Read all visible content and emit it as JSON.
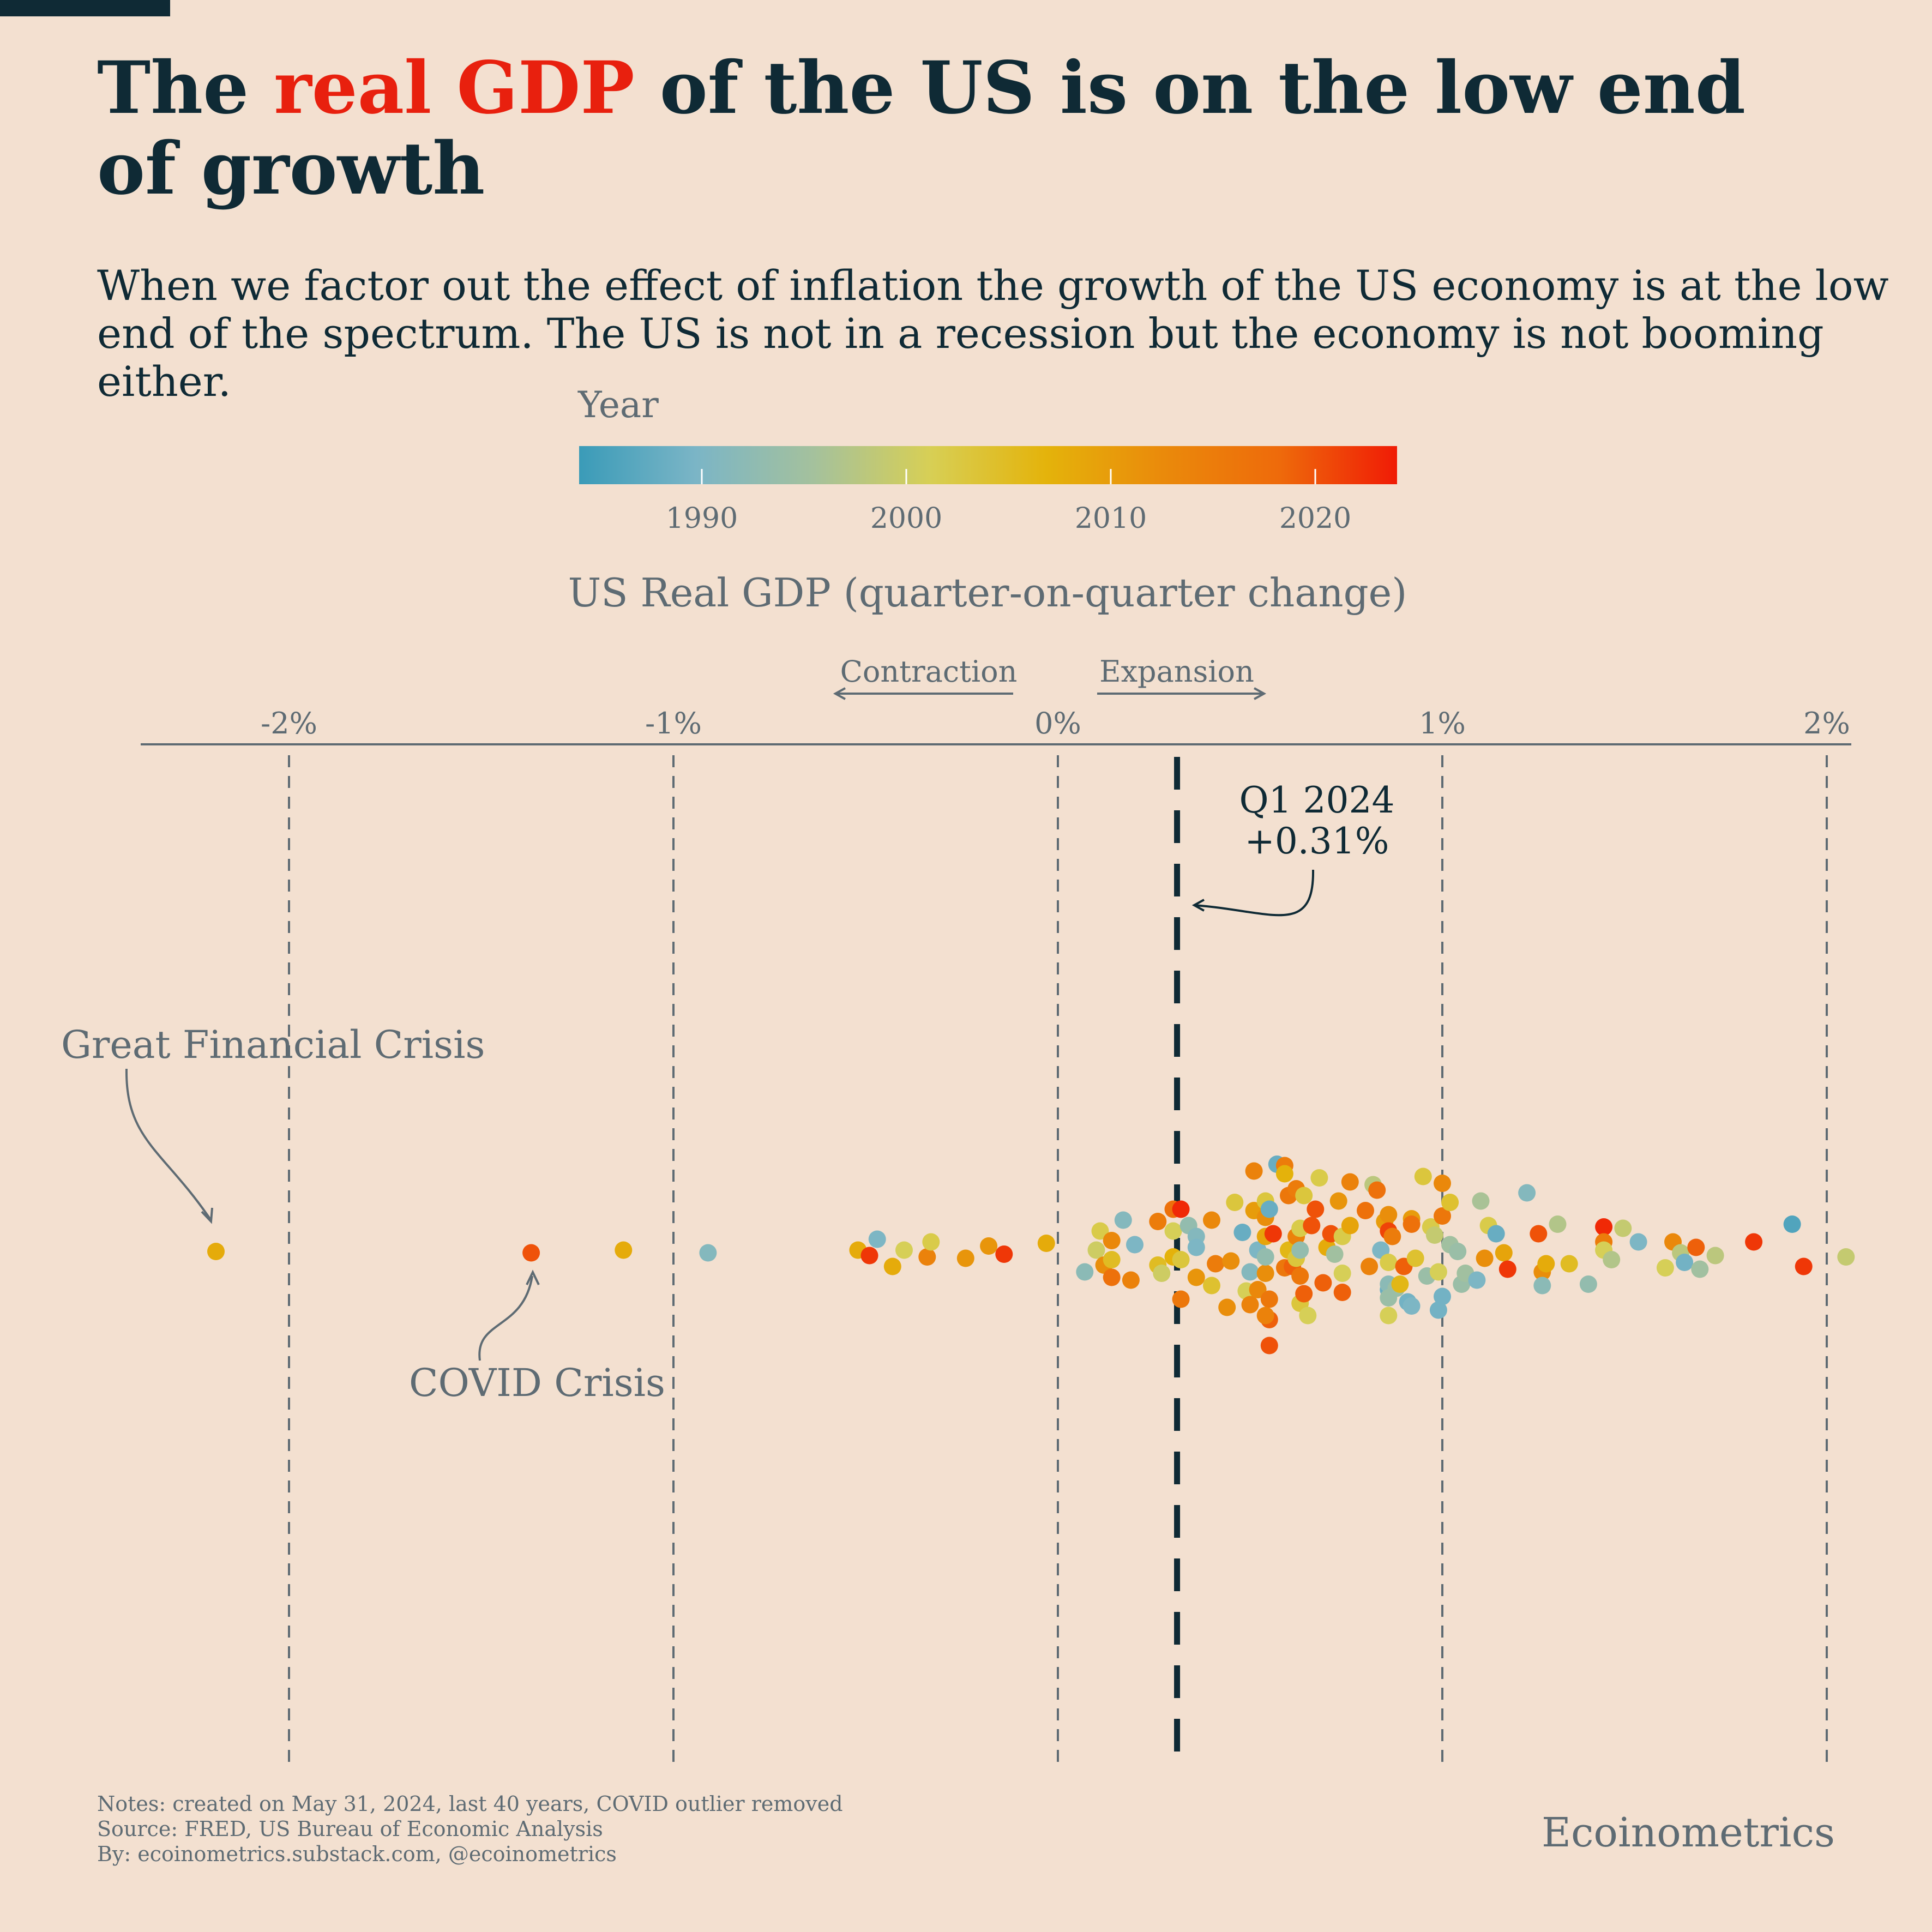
{
  "header": {
    "title_pre": "The ",
    "title_accent": "real GDP",
    "title_post": " of the US is on the low end of growth",
    "subtitle": "When we factor out the effect of inflation the growth of the US economy is at the low end of the spectrum. The US is not in a recession but the economy is not booming either."
  },
  "colors": {
    "background": "#f3e0d0",
    "title": "#0f2a35",
    "accent": "#e8200e",
    "muted": "#5e6b73",
    "gradient": [
      "#3a9bb8",
      "#7bb5c6",
      "#a4c19d",
      "#d7cf55",
      "#e4b30b",
      "#ea8a0b",
      "#ee6a0b",
      "#f01b05"
    ]
  },
  "legend": {
    "title": "Year",
    "ticks": [
      {
        "year": 1990,
        "label": "1990"
      },
      {
        "year": 2000,
        "label": "2000"
      },
      {
        "year": 2010,
        "label": "2010"
      },
      {
        "year": 2020,
        "label": "2020"
      }
    ],
    "range": [
      1984,
      2024
    ]
  },
  "chart_data": {
    "type": "scatter",
    "title": "US Real GDP (quarter-on-quarter change)",
    "direction_labels": {
      "left": "Contraction",
      "right": "Expansion"
    },
    "xlim": [
      -2.4,
      2.02
    ],
    "ticks": [
      {
        "value": -2,
        "label": "-2%"
      },
      {
        "value": -1,
        "label": "-1%"
      },
      {
        "value": 0,
        "label": "0%"
      },
      {
        "value": 1,
        "label": "1%"
      },
      {
        "value": 2,
        "label": "2%"
      }
    ],
    "grid": true,
    "reference": {
      "value": 0.31,
      "label_line1": "Q1 2024",
      "label_line2": "+0.31%"
    },
    "annotations": [
      {
        "text": "Great Financial Crisis",
        "target": {
          "x": -2.19,
          "year": 2008
        }
      },
      {
        "text": "COVID Crisis",
        "target": {
          "x": -1.37,
          "year": 2020
        }
      }
    ],
    "points": [
      {
        "x": -2.19,
        "lane": 0.0,
        "year": 2008
      },
      {
        "x": -1.37,
        "lane": -0.05,
        "year": 2020
      },
      {
        "x": -1.13,
        "lane": 0.05,
        "year": 2008
      },
      {
        "x": -0.91,
        "lane": -0.05,
        "year": 1991
      },
      {
        "x": -0.47,
        "lane": 0.45,
        "year": 1990
      },
      {
        "x": -0.52,
        "lane": 0.05,
        "year": 2008
      },
      {
        "x": -0.49,
        "lane": -0.15,
        "year": 2022
      },
      {
        "x": -0.4,
        "lane": 0.05,
        "year": 2001
      },
      {
        "x": -0.43,
        "lane": -0.55,
        "year": 2008
      },
      {
        "x": -0.34,
        "lane": -0.2,
        "year": 2014
      },
      {
        "x": -0.33,
        "lane": 0.35,
        "year": 2002
      },
      {
        "x": -0.24,
        "lane": -0.25,
        "year": 2011
      },
      {
        "x": -0.18,
        "lane": 0.2,
        "year": 2011
      },
      {
        "x": -0.14,
        "lane": -0.1,
        "year": 2022
      },
      {
        "x": -0.03,
        "lane": 0.3,
        "year": 2008
      },
      {
        "x": 0.07,
        "lane": -0.75,
        "year": 1992
      },
      {
        "x": 0.1,
        "lane": 0.05,
        "year": 2000
      },
      {
        "x": 0.11,
        "lane": 0.75,
        "year": 2002
      },
      {
        "x": 0.12,
        "lane": -0.5,
        "year": 2012
      },
      {
        "x": 0.14,
        "lane": 0.4,
        "year": 2013
      },
      {
        "x": 0.14,
        "lane": -0.3,
        "year": 2005
      },
      {
        "x": 0.14,
        "lane": -0.95,
        "year": 2017
      },
      {
        "x": 0.17,
        "lane": 1.15,
        "year": 1991
      },
      {
        "x": 0.19,
        "lane": -1.05,
        "year": 2014
      },
      {
        "x": 0.2,
        "lane": 0.25,
        "year": 1990
      },
      {
        "x": 0.26,
        "lane": 1.1,
        "year": 2015
      },
      {
        "x": 0.26,
        "lane": -0.5,
        "year": 2005
      },
      {
        "x": 0.27,
        "lane": -0.8,
        "year": 2000
      },
      {
        "x": 0.3,
        "lane": 1.55,
        "year": 2017
      },
      {
        "x": 0.3,
        "lane": 0.75,
        "year": 2001
      },
      {
        "x": 0.3,
        "lane": -0.2,
        "year": 2007
      },
      {
        "x": 0.32,
        "lane": 1.55,
        "year": 2023
      },
      {
        "x": 0.32,
        "lane": -1.75,
        "year": 2016
      },
      {
        "x": 0.32,
        "lane": -0.3,
        "year": 2003
      },
      {
        "x": 0.34,
        "lane": 0.95,
        "year": 1993
      },
      {
        "x": 0.36,
        "lane": 0.55,
        "year": 1991
      },
      {
        "x": 0.36,
        "lane": -0.95,
        "year": 2011
      },
      {
        "x": 0.36,
        "lane": 0.15,
        "year": 1990
      },
      {
        "x": 0.4,
        "lane": -1.25,
        "year": 2004
      },
      {
        "x": 0.4,
        "lane": 1.15,
        "year": 2013
      },
      {
        "x": 0.41,
        "lane": -0.45,
        "year": 2015
      },
      {
        "x": 0.44,
        "lane": -2.05,
        "year": 2012
      },
      {
        "x": 0.45,
        "lane": -0.35,
        "year": 2012
      },
      {
        "x": 0.46,
        "lane": 1.8,
        "year": 2003
      },
      {
        "x": 0.48,
        "lane": 0.7,
        "year": 1988
      },
      {
        "x": 0.49,
        "lane": -1.45,
        "year": 2001
      },
      {
        "x": 0.5,
        "lane": -1.95,
        "year": 2014
      },
      {
        "x": 0.5,
        "lane": -0.75,
        "year": 1991
      },
      {
        "x": 0.51,
        "lane": 1.5,
        "year": 2010
      },
      {
        "x": 0.52,
        "lane": 0.05,
        "year": 1990
      },
      {
        "x": 0.51,
        "lane": 2.95,
        "year": 2014
      },
      {
        "x": 0.52,
        "lane": -1.4,
        "year": 2013
      },
      {
        "x": 0.54,
        "lane": -0.8,
        "year": 2012
      },
      {
        "x": 0.54,
        "lane": 1.85,
        "year": 2003
      },
      {
        "x": 0.54,
        "lane": -0.2,
        "year": 1993
      },
      {
        "x": 0.54,
        "lane": 1.25,
        "year": 2012
      },
      {
        "x": 0.54,
        "lane": 0.55,
        "year": 2009
      },
      {
        "x": 0.55,
        "lane": -2.5,
        "year": 2019
      },
      {
        "x": 0.55,
        "lane": -1.75,
        "year": 2016
      },
      {
        "x": 0.55,
        "lane": -3.45,
        "year": 2020
      },
      {
        "x": 0.54,
        "lane": -2.35,
        "year": 2014
      },
      {
        "x": 0.55,
        "lane": 1.55,
        "year": 1988
      },
      {
        "x": 0.56,
        "lane": 0.65,
        "year": 2022
      },
      {
        "x": 0.57,
        "lane": 3.2,
        "year": 1988
      },
      {
        "x": 0.59,
        "lane": 3.15,
        "year": 2015
      },
      {
        "x": 0.59,
        "lane": -0.6,
        "year": 2016
      },
      {
        "x": 0.59,
        "lane": 2.85,
        "year": 2007
      },
      {
        "x": 0.6,
        "lane": 2.05,
        "year": 2016
      },
      {
        "x": 0.6,
        "lane": 0.05,
        "year": 2006
      },
      {
        "x": 0.61,
        "lane": -0.55,
        "year": 2019
      },
      {
        "x": 0.62,
        "lane": 2.3,
        "year": 2015
      },
      {
        "x": 0.62,
        "lane": 0.55,
        "year": 2014
      },
      {
        "x": 0.62,
        "lane": -0.25,
        "year": 2003
      },
      {
        "x": 0.63,
        "lane": -0.9,
        "year": 2016
      },
      {
        "x": 0.63,
        "lane": 0.85,
        "year": 2002
      },
      {
        "x": 0.63,
        "lane": -1.9,
        "year": 2003
      },
      {
        "x": 0.63,
        "lane": 0.05,
        "year": 1993
      },
      {
        "x": 0.64,
        "lane": -1.55,
        "year": 2019
      },
      {
        "x": 0.64,
        "lane": 2.05,
        "year": 2003
      },
      {
        "x": 0.65,
        "lane": -2.35,
        "year": 2001
      },
      {
        "x": 0.66,
        "lane": 0.95,
        "year": 2020
      },
      {
        "x": 0.67,
        "lane": 1.55,
        "year": 2020
      },
      {
        "x": 0.68,
        "lane": 2.7,
        "year": 2002
      },
      {
        "x": 0.69,
        "lane": -1.15,
        "year": 2019
      },
      {
        "x": 0.7,
        "lane": 0.15,
        "year": 2008
      },
      {
        "x": 0.71,
        "lane": 0.65,
        "year": 2020
      },
      {
        "x": 0.72,
        "lane": -0.1,
        "year": 1995
      },
      {
        "x": 0.73,
        "lane": 1.85,
        "year": 2011
      },
      {
        "x": 0.76,
        "lane": 2.55,
        "year": 2014
      },
      {
        "x": 0.74,
        "lane": -0.8,
        "year": 2001
      },
      {
        "x": 0.74,
        "lane": 0.55,
        "year": 2002
      },
      {
        "x": 0.74,
        "lane": -1.5,
        "year": 2019
      },
      {
        "x": 0.76,
        "lane": 0.95,
        "year": 2009
      },
      {
        "x": 0.8,
        "lane": 1.5,
        "year": 2017
      },
      {
        "x": 0.81,
        "lane": -0.55,
        "year": 2014
      },
      {
        "x": 0.82,
        "lane": 2.45,
        "year": 1998
      },
      {
        "x": 0.83,
        "lane": 2.25,
        "year": 2017
      },
      {
        "x": 0.84,
        "lane": 0.05,
        "year": 1990
      },
      {
        "x": 0.85,
        "lane": 1.1,
        "year": 2010
      },
      {
        "x": 0.86,
        "lane": 1.35,
        "year": 2012
      },
      {
        "x": 0.86,
        "lane": 0.75,
        "year": 2021
      },
      {
        "x": 0.86,
        "lane": -1.4,
        "year": 1988
      },
      {
        "x": 0.86,
        "lane": -1.2,
        "year": 1992
      },
      {
        "x": 0.86,
        "lane": -0.4,
        "year": 2002
      },
      {
        "x": 0.86,
        "lane": -1.7,
        "year": 1994
      },
      {
        "x": 0.86,
        "lane": -2.35,
        "year": 2001
      },
      {
        "x": 0.87,
        "lane": 0.55,
        "year": 2015
      },
      {
        "x": 0.88,
        "lane": -1.35,
        "year": 1994
      },
      {
        "x": 0.89,
        "lane": -1.2,
        "year": 2006
      },
      {
        "x": 0.9,
        "lane": -0.55,
        "year": 2019
      },
      {
        "x": 0.91,
        "lane": -1.85,
        "year": 1989
      },
      {
        "x": 0.92,
        "lane": 1.2,
        "year": 2010
      },
      {
        "x": 0.92,
        "lane": 1.0,
        "year": 2017
      },
      {
        "x": 0.92,
        "lane": -2.0,
        "year": 1990
      },
      {
        "x": 0.93,
        "lane": -0.25,
        "year": 2004
      },
      {
        "x": 0.95,
        "lane": 2.75,
        "year": 2003
      },
      {
        "x": 0.96,
        "lane": -0.9,
        "year": 1994
      },
      {
        "x": 0.97,
        "lane": 0.9,
        "year": 2002
      },
      {
        "x": 0.98,
        "lane": 0.6,
        "year": 1999
      },
      {
        "x": 0.99,
        "lane": -2.15,
        "year": 1989
      },
      {
        "x": 0.99,
        "lane": -0.75,
        "year": 2001
      },
      {
        "x": 1.0,
        "lane": 1.3,
        "year": 2016
      },
      {
        "x": 1.0,
        "lane": 2.5,
        "year": 2013
      },
      {
        "x": 1.0,
        "lane": -1.65,
        "year": 1989
      },
      {
        "x": 1.02,
        "lane": 1.8,
        "year": 2004
      },
      {
        "x": 1.02,
        "lane": 0.25,
        "year": 1995
      },
      {
        "x": 1.04,
        "lane": 0.0,
        "year": 1994
      },
      {
        "x": 1.05,
        "lane": -1.2,
        "year": 1994
      },
      {
        "x": 1.06,
        "lane": -0.8,
        "year": 1995
      },
      {
        "x": 1.09,
        "lane": -1.05,
        "year": 1990
      },
      {
        "x": 1.1,
        "lane": 1.85,
        "year": 1996
      },
      {
        "x": 1.11,
        "lane": -0.25,
        "year": 2012
      },
      {
        "x": 1.12,
        "lane": 0.95,
        "year": 2002
      },
      {
        "x": 1.14,
        "lane": 0.65,
        "year": 1988
      },
      {
        "x": 1.16,
        "lane": -0.05,
        "year": 2009
      },
      {
        "x": 1.17,
        "lane": -0.65,
        "year": 2022
      },
      {
        "x": 1.22,
        "lane": 2.15,
        "year": 1991
      },
      {
        "x": 1.25,
        "lane": 0.65,
        "year": 2020
      },
      {
        "x": 1.26,
        "lane": -0.75,
        "year": 2012
      },
      {
        "x": 1.27,
        "lane": -0.45,
        "year": 2008
      },
      {
        "x": 1.26,
        "lane": -1.25,
        "year": 1992
      },
      {
        "x": 1.3,
        "lane": 1.0,
        "year": 1997
      },
      {
        "x": 1.33,
        "lane": -0.45,
        "year": 2005
      },
      {
        "x": 1.38,
        "lane": -1.2,
        "year": 1993
      },
      {
        "x": 1.42,
        "lane": 0.9,
        "year": 2023
      },
      {
        "x": 1.42,
        "lane": 0.35,
        "year": 2015
      },
      {
        "x": 1.42,
        "lane": 0.05,
        "year": 2001
      },
      {
        "x": 1.44,
        "lane": -0.3,
        "year": 1997
      },
      {
        "x": 1.47,
        "lane": 0.85,
        "year": 1999
      },
      {
        "x": 1.51,
        "lane": 0.35,
        "year": 1990
      },
      {
        "x": 1.58,
        "lane": -0.6,
        "year": 2001
      },
      {
        "x": 1.6,
        "lane": 0.35,
        "year": 2013
      },
      {
        "x": 1.62,
        "lane": -0.05,
        "year": 1998
      },
      {
        "x": 1.63,
        "lane": -0.4,
        "year": 1989
      },
      {
        "x": 1.66,
        "lane": 0.15,
        "year": 2019
      },
      {
        "x": 1.67,
        "lane": -0.65,
        "year": 1995
      },
      {
        "x": 1.71,
        "lane": -0.15,
        "year": 1998
      },
      {
        "x": 1.81,
        "lane": 0.35,
        "year": 2022
      },
      {
        "x": 1.91,
        "lane": 1.0,
        "year": 1986
      },
      {
        "x": 1.94,
        "lane": -0.55,
        "year": 2022
      },
      {
        "x": 2.05,
        "lane": -0.2,
        "year": 1999
      }
    ]
  },
  "footer": {
    "notes": "Notes: created on May 31, 2024, last 40 years, COVID outlier removed",
    "source": "Source: FRED, US Bureau of Economic Analysis",
    "by": "By: ecoinometrics.substack.com, @ecoinometrics",
    "brand": "Ecoinometrics"
  }
}
